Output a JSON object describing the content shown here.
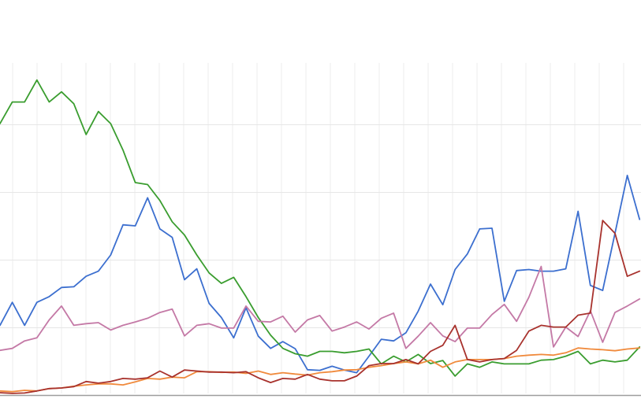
{
  "chart_data": {
    "type": "line",
    "grid": true,
    "legend": "none",
    "ylim": [
      0,
      100
    ],
    "x": [
      1,
      2,
      3,
      4,
      5,
      6,
      7,
      8,
      9,
      10,
      11,
      12,
      13,
      14,
      15,
      16,
      17,
      18,
      19,
      20,
      21,
      22,
      23,
      24,
      25,
      26,
      27,
      28,
      29,
      30,
      31,
      32,
      33,
      34,
      35,
      36,
      37,
      38,
      39,
      40,
      41,
      42,
      43,
      44,
      45,
      46,
      47,
      48,
      49,
      50,
      51,
      52,
      53
    ],
    "series": [
      {
        "color": "#3c6fcf",
        "values": [
          20.6,
          27.4,
          20.6,
          27.4,
          29.1,
          31.8,
          32.0,
          35.1,
          36.6,
          41.4,
          50.3,
          50.0,
          58.3,
          49.1,
          46.6,
          34.1,
          37.3,
          27.1,
          22.9,
          16.9,
          25.8,
          17.4,
          13.8,
          15.8,
          13.7,
          7.5,
          7.3,
          8.5,
          7.4,
          6.6,
          11.5,
          16.5,
          16.0,
          18.4,
          24.8,
          32.8,
          26.7,
          37.1,
          41.7,
          49.1,
          49.3,
          27.7,
          36.8,
          37.1,
          36.6,
          36.6,
          37.3,
          54.3,
          32.4,
          30.9,
          47.8,
          64.9,
          51.9
        ]
      },
      {
        "color": "#3a9d2f",
        "values": [
          80.2,
          86.6,
          86.6,
          93.1,
          86.6,
          89.6,
          86.1,
          77.0,
          83.8,
          80.2,
          72.4,
          62.8,
          62.2,
          57.5,
          51.2,
          47.3,
          41.4,
          36.1,
          33.0,
          34.8,
          29.1,
          22.9,
          17.7,
          13.8,
          12.2,
          11.5,
          12.9,
          12.9,
          12.5,
          12.9,
          13.6,
          9.2,
          11.5,
          9.8,
          12.0,
          9.3,
          10.2,
          5.6,
          9.2,
          8.2,
          9.8,
          9.2,
          9.2,
          9.2,
          10.3,
          10.5,
          11.5,
          12.9,
          9.2,
          10.3,
          9.8,
          10.3,
          14.2
        ]
      },
      {
        "color": "#c479a6",
        "values": [
          13.2,
          13.8,
          16.0,
          16.9,
          22.2,
          26.3,
          20.6,
          21.1,
          21.4,
          19.2,
          20.6,
          21.6,
          22.7,
          24.4,
          25.4,
          17.5,
          20.6,
          21.1,
          19.8,
          19.8,
          26.3,
          21.8,
          21.6,
          23.3,
          18.6,
          22.2,
          23.5,
          18.9,
          20.1,
          21.6,
          19.5,
          22.7,
          24.2,
          13.8,
          17.4,
          21.4,
          17.5,
          15.8,
          19.8,
          19.8,
          23.8,
          26.8,
          21.8,
          28.9,
          38.0,
          14.2,
          20.1,
          17.3,
          24.9,
          15.6,
          24.4,
          26.3,
          28.4
        ]
      },
      {
        "color": "#f08a3c",
        "values": [
          1.2,
          1.0,
          1.4,
          1.2,
          1.9,
          2.1,
          2.6,
          3.0,
          3.3,
          3.3,
          3.0,
          3.9,
          4.9,
          4.7,
          5.3,
          5.1,
          6.9,
          6.9,
          6.7,
          6.8,
          6.4,
          7.1,
          6.1,
          6.6,
          6.2,
          5.9,
          6.6,
          6.9,
          7.4,
          7.5,
          8.2,
          8.7,
          9.3,
          9.8,
          9.2,
          10.3,
          8.2,
          9.8,
          10.5,
          10.5,
          10.5,
          10.8,
          11.5,
          11.8,
          12.0,
          11.8,
          12.5,
          13.9,
          13.6,
          13.4,
          13.1,
          13.6,
          13.9
        ]
      },
      {
        "color": "#a8322d",
        "values": [
          0.7,
          0.5,
          0.6,
          1.2,
          1.9,
          2.1,
          2.5,
          4.0,
          3.5,
          4.0,
          4.9,
          4.7,
          5.1,
          7.1,
          5.3,
          7.4,
          7.1,
          6.8,
          6.8,
          6.6,
          6.9,
          5.1,
          3.7,
          4.9,
          4.7,
          6.1,
          4.7,
          4.2,
          4.2,
          5.6,
          8.7,
          9.3,
          9.3,
          10.5,
          9.2,
          12.9,
          14.7,
          20.6,
          10.5,
          9.8,
          10.5,
          10.8,
          13.2,
          18.9,
          20.6,
          20.1,
          20.1,
          23.6,
          24.2,
          51.6,
          47.8,
          35.1,
          36.6
        ]
      }
    ]
  }
}
